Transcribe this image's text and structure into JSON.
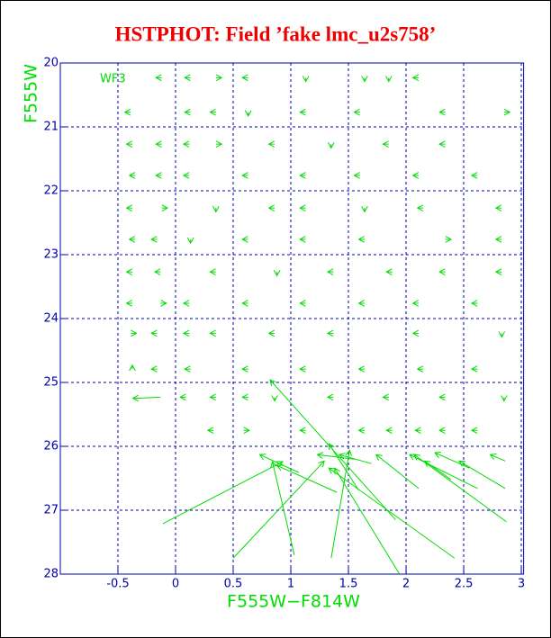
{
  "chart_data": {
    "type": "vector",
    "title": "HSTPHOT: Field ’fake lmc_u2s758’",
    "x_label": "F555W−F814W",
    "y_label": "F555W",
    "annotation": "WF3",
    "color": "#00dd00",
    "axis_color": "#0000aa",
    "title_color": "#ee0000",
    "grid": true,
    "y_inverted": true,
    "xlim": [
      -1,
      3.02
    ],
    "ylim": [
      20,
      28
    ],
    "xticks": [
      -0.5,
      0,
      0.5,
      1,
      1.5,
      2,
      2.5,
      3
    ],
    "yticks": [
      20,
      21,
      22,
      23,
      24,
      25,
      26,
      27,
      28
    ],
    "x": [
      -0.12,
      0.13,
      0.35,
      0.63,
      1.13,
      1.64,
      1.85,
      2.11,
      -0.39,
      0.13,
      0.35,
      0.63,
      1.13,
      1.6,
      2.34,
      2.85,
      -0.375,
      -0.12,
      0.12,
      0.35,
      0.86,
      1.35,
      1.85,
      2.34,
      -0.35,
      -0.12,
      0.12,
      0.63,
      1.13,
      1.6,
      2.11,
      2.62,
      -0.375,
      -0.12,
      0.35,
      0.86,
      1.13,
      1.64,
      2.15,
      2.83,
      -0.35,
      -0.16,
      0.13,
      0.63,
      1.13,
      1.64,
      2.34,
      2.83,
      -0.375,
      -0.13,
      0.35,
      0.88,
      1.37,
      1.88,
      2.34,
      2.83,
      -0.375,
      -0.13,
      0.12,
      0.63,
      1.13,
      1.64,
      2.11,
      2.62,
      -0.39,
      -0.16,
      0.12,
      0.35,
      0.86,
      1.37,
      2.11,
      2.83,
      -0.375,
      -0.16,
      0.13,
      0.63,
      1.13,
      1.64,
      2.15,
      2.62,
      0.09,
      0.35,
      0.63,
      0.86,
      1.37,
      1.85,
      2.34,
      2.85,
      0.33,
      0.59,
      1.13,
      1.64,
      1.88,
      2.13,
      2.34,
      2.62,
      -0.11,
      0.5,
      1.03,
      1.35,
      1.94,
      2.42,
      1.91,
      1.4,
      1.07,
      1.59,
      2.11,
      2.87,
      2.62,
      2.86,
      2.39,
      2.55,
      2.86,
      1.55,
      1.7,
      -0.13
    ],
    "y": [
      20.23,
      20.23,
      20.23,
      20.23,
      20.23,
      20.23,
      20.23,
      20.23,
      20.77,
      20.77,
      20.77,
      20.77,
      20.77,
      20.77,
      20.77,
      20.77,
      21.27,
      21.27,
      21.27,
      21.27,
      21.27,
      21.27,
      21.27,
      21.27,
      21.76,
      21.76,
      21.76,
      21.76,
      21.76,
      21.76,
      21.76,
      21.76,
      22.27,
      22.27,
      22.27,
      22.27,
      22.27,
      22.27,
      22.27,
      22.27,
      22.76,
      22.76,
      22.76,
      22.76,
      22.76,
      22.76,
      22.76,
      22.76,
      23.27,
      23.27,
      23.27,
      23.27,
      23.27,
      23.27,
      23.27,
      23.27,
      23.76,
      23.76,
      23.76,
      23.76,
      23.76,
      23.76,
      23.76,
      23.76,
      24.23,
      24.23,
      24.23,
      24.23,
      24.23,
      24.23,
      24.23,
      24.23,
      24.79,
      24.79,
      24.79,
      24.79,
      24.79,
      24.79,
      24.79,
      24.79,
      25.23,
      25.23,
      25.23,
      25.23,
      25.23,
      25.23,
      25.23,
      25.23,
      25.75,
      25.75,
      25.75,
      25.75,
      25.75,
      25.75,
      25.75,
      25.75,
      27.21,
      27.75,
      27.7,
      27.75,
      27.99,
      27.75,
      27.15,
      26.72,
      26.41,
      26.69,
      26.66,
      27.18,
      26.66,
      26.66,
      26.52,
      26.34,
      26.23,
      26.2,
      26.27,
      25.23
    ],
    "x_end": [
      -0.17,
      0.08,
      0.4,
      0.58,
      1.13,
      1.64,
      1.85,
      2.06,
      -0.44,
      0.08,
      0.3,
      0.63,
      1.08,
      1.55,
      2.29,
      2.9,
      -0.425,
      -0.17,
      0.07,
      0.4,
      0.81,
      1.35,
      1.8,
      2.29,
      -0.4,
      -0.17,
      0.07,
      0.58,
      1.08,
      1.55,
      2.06,
      2.57,
      -0.425,
      -0.07,
      0.35,
      0.81,
      1.08,
      1.64,
      2.1,
      2.78,
      -0.4,
      -0.21,
      0.13,
      0.58,
      1.08,
      1.59,
      2.39,
      2.78,
      -0.425,
      -0.18,
      0.3,
      0.88,
      1.32,
      1.83,
      2.29,
      2.78,
      -0.425,
      -0.08,
      0.07,
      0.58,
      1.08,
      1.59,
      2.06,
      2.57,
      -0.34,
      -0.21,
      0.07,
      0.3,
      0.81,
      1.32,
      2.06,
      2.83,
      -0.375,
      -0.21,
      0.08,
      0.58,
      1.08,
      1.59,
      2.1,
      2.57,
      0.04,
      0.3,
      0.58,
      0.86,
      1.32,
      1.8,
      2.29,
      2.85,
      0.28,
      0.64,
      1.08,
      1.59,
      1.83,
      2.08,
      2.29,
      2.57,
      0.93,
      1.29,
      0.84,
      1.51,
      1.38,
      1.33,
      0.82,
      0.88,
      0.73,
      1.33,
      1.74,
      2.07,
      2.03,
      2.46,
      2.16,
      2.25,
      2.73,
      1.23,
      1.42,
      -0.37
    ],
    "y_end": [
      20.23,
      20.23,
      20.23,
      20.23,
      20.29,
      20.29,
      20.29,
      20.23,
      20.77,
      20.77,
      20.77,
      20.83,
      20.77,
      20.77,
      20.77,
      20.77,
      21.27,
      21.27,
      21.27,
      21.27,
      21.27,
      21.33,
      21.27,
      21.27,
      21.76,
      21.76,
      21.76,
      21.76,
      21.76,
      21.76,
      21.76,
      21.76,
      22.27,
      22.27,
      22.33,
      22.27,
      22.27,
      22.33,
      22.27,
      22.27,
      22.76,
      22.76,
      22.82,
      22.76,
      22.76,
      22.76,
      22.76,
      22.76,
      23.27,
      23.27,
      23.27,
      23.33,
      23.27,
      23.27,
      23.27,
      23.27,
      23.76,
      23.76,
      23.76,
      23.76,
      23.76,
      23.76,
      23.76,
      23.76,
      24.23,
      24.23,
      24.23,
      24.23,
      24.23,
      24.23,
      24.23,
      24.29,
      24.73,
      24.79,
      24.79,
      24.79,
      24.79,
      24.79,
      24.79,
      24.79,
      25.23,
      25.23,
      25.23,
      25.29,
      25.23,
      25.23,
      25.23,
      25.29,
      25.75,
      25.75,
      25.75,
      25.75,
      25.75,
      25.75,
      25.75,
      25.75,
      26.24,
      26.23,
      26.24,
      26.06,
      26.34,
      26.34,
      24.96,
      26.3,
      26.13,
      25.96,
      26.13,
      26.13,
      26.13,
      26.23,
      26.23,
      26.1,
      26.13,
      26.13,
      26.13,
      25.25
    ]
  }
}
